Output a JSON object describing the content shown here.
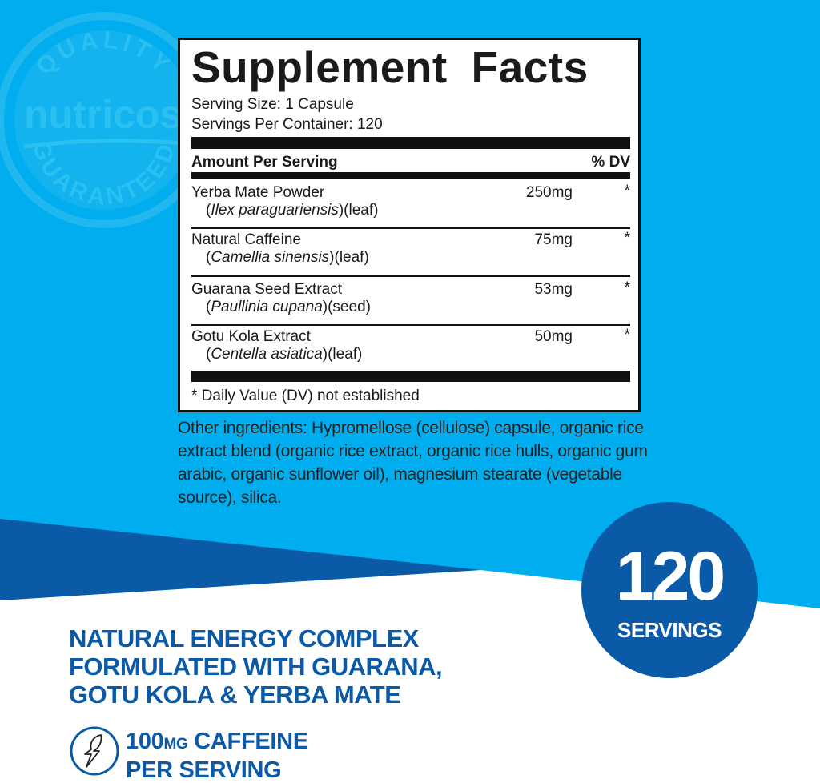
{
  "colors": {
    "light_blue": "#00aeef",
    "dark_blue": "#0a5aa8",
    "white": "#ffffff",
    "black": "#111111"
  },
  "seal": {
    "top_text": "QUALITY",
    "brand": "nutricost",
    "bottom_text": "GUARANTEED"
  },
  "facts": {
    "title": "Supplement Facts",
    "serving_size": "Serving Size: 1 Capsule",
    "servings_per_container": "Servings Per Container: 120",
    "header_left": "Amount Per Serving",
    "header_right": "% DV",
    "rows": [
      {
        "name": "Yerba Mate Powder",
        "latin_open": "(",
        "latin": "Ilex paraguariensis",
        "latin_close": ")(leaf)",
        "amount": "250mg",
        "dv": "*"
      },
      {
        "name": "Natural Caffeine",
        "latin_open": "(",
        "latin": "Camellia sinensis",
        "latin_close": ")(leaf)",
        "amount": "75mg",
        "dv": "*"
      },
      {
        "name": "Guarana Seed Extract",
        "latin_open": "(",
        "latin": "Paullinia cupana",
        "latin_close": ")(seed)",
        "amount": "53mg",
        "dv": "*"
      },
      {
        "name": "Gotu Kola Extract",
        "latin_open": "(",
        "latin": "Centella asiatica",
        "latin_close": ")(leaf)",
        "amount": "50mg",
        "dv": "*"
      }
    ],
    "footnote": "* Daily Value (DV) not established"
  },
  "other_ingredients": "Other ingredients: Hypromellose (cellulose) capsule, organic rice extract blend (organic rice extract, organic rice hulls, organic gum arabic, organic sunflower oil), magnesium stearate (vegetable source), silica.",
  "servings_badge": {
    "number": "120",
    "label": "SERVINGS"
  },
  "tagline": [
    "NATURAL ENERGY COMPLEX",
    "FORMULATED WITH GUARANA,",
    "GOTU KOLA & YERBA MATE"
  ],
  "caffeine": {
    "icon": "lightning-leaf-icon",
    "amount": "100",
    "unit": "MG",
    "line1_rest": " CAFFEINE",
    "line2": "PER SERVING"
  }
}
